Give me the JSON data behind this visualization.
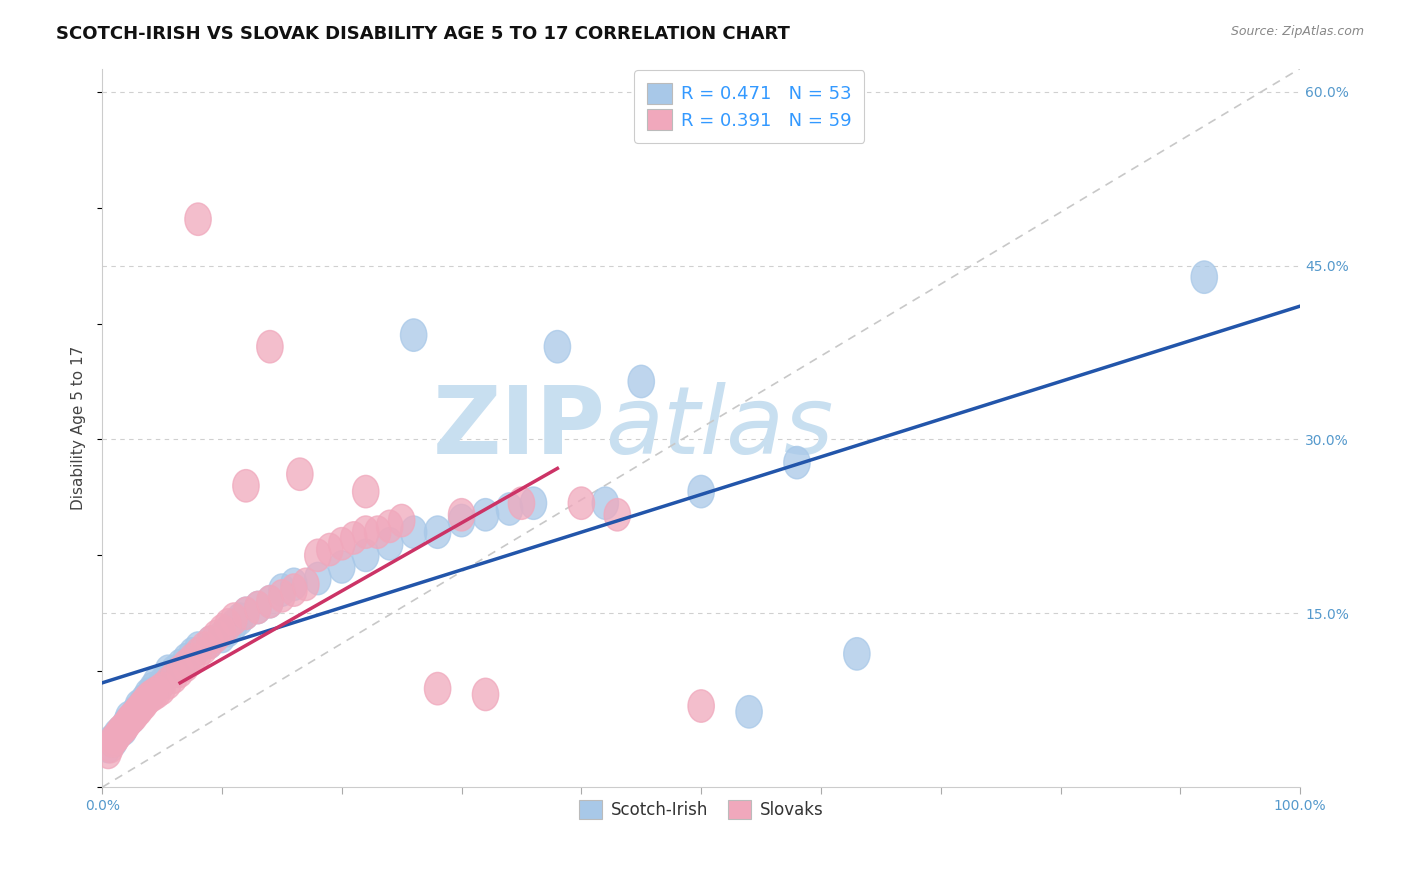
{
  "title": "SCOTCH-IRISH VS SLOVAK DISABILITY AGE 5 TO 17 CORRELATION CHART",
  "source_text": "Source: ZipAtlas.com",
  "ylabel": "Disability Age 5 to 17",
  "xlim": [
    0.0,
    1.0
  ],
  "ylim": [
    0.0,
    0.62
  ],
  "yticks_right": [
    0.15,
    0.3,
    0.45,
    0.6
  ],
  "ytick_labels_right": [
    "15.0%",
    "30.0%",
    "45.0%",
    "60.0%"
  ],
  "grid_color": "#d0d0d0",
  "background_color": "#ffffff",
  "scotch_irish_color": "#a8c8e8",
  "slovak_color": "#f0a8bc",
  "scotch_irish_line_color": "#2255aa",
  "slovak_line_color": "#cc3366",
  "ref_line_color": "#c8c8c8",
  "legend_R_scotch": "0.471",
  "legend_N_scotch": "53",
  "legend_R_slovak": "0.391",
  "legend_N_slovak": "59",
  "legend_text_color": "#3399ff",
  "watermark_color": "#c8dff0",
  "title_fontsize": 13,
  "axis_label_fontsize": 11,
  "tick_fontsize": 10,
  "scotch_irish_line_x0": 0.0,
  "scotch_irish_line_y0": 0.09,
  "scotch_irish_line_x1": 1.0,
  "scotch_irish_line_y1": 0.415,
  "slovak_line_x0": 0.065,
  "slovak_line_y0": 0.09,
  "slovak_line_x1": 0.38,
  "slovak_line_y1": 0.275,
  "ref_line_x0": 0.0,
  "ref_line_y0": 0.0,
  "ref_line_x1": 1.0,
  "ref_line_y1": 0.62,
  "scotch_irish_pts": [
    [
      0.005,
      0.035
    ],
    [
      0.008,
      0.04
    ],
    [
      0.01,
      0.04
    ],
    [
      0.012,
      0.045
    ],
    [
      0.015,
      0.048
    ],
    [
      0.018,
      0.05
    ],
    [
      0.02,
      0.055
    ],
    [
      0.022,
      0.06
    ],
    [
      0.025,
      0.06
    ],
    [
      0.028,
      0.065
    ],
    [
      0.03,
      0.07
    ],
    [
      0.032,
      0.07
    ],
    [
      0.035,
      0.075
    ],
    [
      0.038,
      0.08
    ],
    [
      0.04,
      0.08
    ],
    [
      0.042,
      0.085
    ],
    [
      0.045,
      0.09
    ],
    [
      0.05,
      0.09
    ],
    [
      0.055,
      0.1
    ],
    [
      0.06,
      0.1
    ],
    [
      0.065,
      0.105
    ],
    [
      0.07,
      0.11
    ],
    [
      0.075,
      0.115
    ],
    [
      0.08,
      0.12
    ],
    [
      0.09,
      0.125
    ],
    [
      0.1,
      0.13
    ],
    [
      0.105,
      0.135
    ],
    [
      0.11,
      0.14
    ],
    [
      0.115,
      0.145
    ],
    [
      0.12,
      0.15
    ],
    [
      0.13,
      0.155
    ],
    [
      0.14,
      0.16
    ],
    [
      0.15,
      0.17
    ],
    [
      0.16,
      0.175
    ],
    [
      0.18,
      0.18
    ],
    [
      0.2,
      0.19
    ],
    [
      0.22,
      0.2
    ],
    [
      0.24,
      0.21
    ],
    [
      0.26,
      0.22
    ],
    [
      0.28,
      0.22
    ],
    [
      0.3,
      0.23
    ],
    [
      0.32,
      0.235
    ],
    [
      0.34,
      0.24
    ],
    [
      0.36,
      0.245
    ],
    [
      0.38,
      0.38
    ],
    [
      0.42,
      0.245
    ],
    [
      0.5,
      0.255
    ],
    [
      0.54,
      0.065
    ],
    [
      0.58,
      0.28
    ],
    [
      0.26,
      0.39
    ],
    [
      0.45,
      0.35
    ],
    [
      0.92,
      0.44
    ],
    [
      0.63,
      0.115
    ]
  ],
  "slovak_pts": [
    [
      0.005,
      0.03
    ],
    [
      0.007,
      0.035
    ],
    [
      0.009,
      0.04
    ],
    [
      0.011,
      0.042
    ],
    [
      0.013,
      0.045
    ],
    [
      0.015,
      0.048
    ],
    [
      0.017,
      0.05
    ],
    [
      0.019,
      0.052
    ],
    [
      0.021,
      0.055
    ],
    [
      0.023,
      0.058
    ],
    [
      0.025,
      0.06
    ],
    [
      0.027,
      0.062
    ],
    [
      0.029,
      0.065
    ],
    [
      0.031,
      0.067
    ],
    [
      0.033,
      0.07
    ],
    [
      0.035,
      0.072
    ],
    [
      0.037,
      0.075
    ],
    [
      0.04,
      0.078
    ],
    [
      0.043,
      0.08
    ],
    [
      0.046,
      0.082
    ],
    [
      0.05,
      0.085
    ],
    [
      0.055,
      0.09
    ],
    [
      0.06,
      0.095
    ],
    [
      0.065,
      0.1
    ],
    [
      0.07,
      0.105
    ],
    [
      0.075,
      0.11
    ],
    [
      0.08,
      0.115
    ],
    [
      0.085,
      0.12
    ],
    [
      0.09,
      0.125
    ],
    [
      0.095,
      0.13
    ],
    [
      0.1,
      0.135
    ],
    [
      0.105,
      0.14
    ],
    [
      0.11,
      0.145
    ],
    [
      0.12,
      0.15
    ],
    [
      0.13,
      0.155
    ],
    [
      0.14,
      0.16
    ],
    [
      0.15,
      0.165
    ],
    [
      0.16,
      0.17
    ],
    [
      0.17,
      0.175
    ],
    [
      0.18,
      0.2
    ],
    [
      0.19,
      0.205
    ],
    [
      0.2,
      0.21
    ],
    [
      0.21,
      0.215
    ],
    [
      0.22,
      0.22
    ],
    [
      0.23,
      0.22
    ],
    [
      0.24,
      0.225
    ],
    [
      0.25,
      0.23
    ],
    [
      0.3,
      0.235
    ],
    [
      0.35,
      0.245
    ],
    [
      0.4,
      0.245
    ],
    [
      0.08,
      0.49
    ],
    [
      0.14,
      0.38
    ],
    [
      0.43,
      0.235
    ],
    [
      0.28,
      0.085
    ],
    [
      0.165,
      0.27
    ],
    [
      0.12,
      0.26
    ],
    [
      0.22,
      0.255
    ],
    [
      0.32,
      0.08
    ],
    [
      0.5,
      0.07
    ]
  ]
}
